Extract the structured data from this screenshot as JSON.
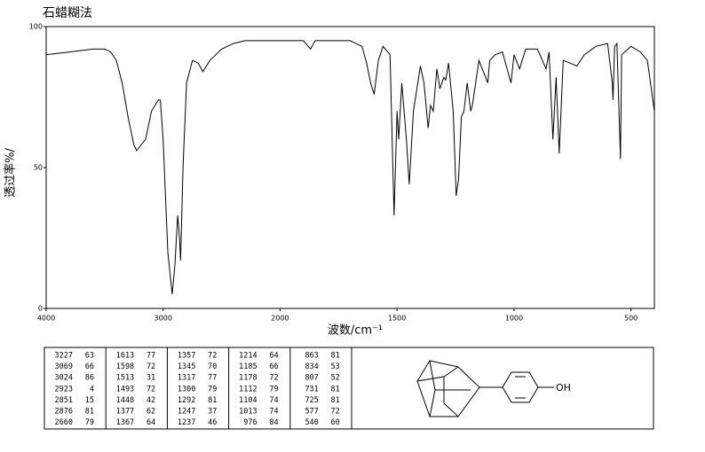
{
  "chart_data": {
    "type": "line",
    "title": "石蜡糊法",
    "x_label": "波数/cm⁻¹",
    "y_label": "透过率%/",
    "xlim": [
      4000,
      400
    ],
    "x_break": 2000,
    "xticks": [
      4000,
      3000,
      2000,
      1500,
      1000,
      500
    ],
    "ylim": [
      0,
      100
    ],
    "yticks": [
      0,
      50,
      100
    ],
    "color": "#000000",
    "x": [
      4000,
      3800,
      3600,
      3500,
      3450,
      3400,
      3350,
      3300,
      3250,
      3227,
      3150,
      3100,
      3069,
      3040,
      3024,
      3000,
      2960,
      2923,
      2900,
      2876,
      2860,
      2851,
      2830,
      2800,
      2750,
      2700,
      2660,
      2600,
      2500,
      2400,
      2300,
      2200,
      2100,
      2000,
      1900,
      1870,
      1850,
      1700,
      1650,
      1630,
      1613,
      1598,
      1580,
      1560,
      1530,
      1513,
      1500,
      1493,
      1480,
      1460,
      1448,
      1430,
      1400,
      1385,
      1367,
      1357,
      1345,
      1330,
      1317,
      1300,
      1292,
      1280,
      1260,
      1247,
      1237,
      1225,
      1214,
      1200,
      1185,
      1178,
      1150,
      1112,
      1104,
      1080,
      1050,
      1013,
      1000,
      976,
      950,
      900,
      863,
      850,
      834,
      820,
      807,
      790,
      760,
      731,
      700,
      650,
      600,
      580,
      577,
      570,
      560,
      545,
      540,
      500,
      460,
      430,
      400
    ],
    "values": [
      90,
      91,
      92,
      92,
      91,
      88,
      80,
      68,
      58,
      56,
      60,
      70,
      72,
      74,
      74,
      60,
      20,
      5,
      15,
      33,
      25,
      17,
      50,
      80,
      88,
      87,
      84,
      88,
      92,
      94,
      95,
      95,
      95,
      95,
      95,
      92,
      95,
      95,
      93,
      87,
      80,
      76,
      88,
      93,
      90,
      33,
      70,
      60,
      80,
      60,
      44,
      70,
      86,
      80,
      64,
      72,
      70,
      85,
      78,
      82,
      81,
      87,
      70,
      40,
      46,
      68,
      70,
      80,
      70,
      72,
      88,
      80,
      88,
      90,
      91,
      80,
      90,
      85,
      92,
      92,
      85,
      91,
      60,
      82,
      55,
      88,
      87,
      86,
      90,
      93,
      94,
      80,
      74,
      93,
      94,
      53,
      90,
      93,
      91,
      88,
      70
    ]
  },
  "peak_table": [
    [
      [
        "3227",
        "63"
      ],
      [
        "3069",
        "66"
      ],
      [
        "3024",
        "86"
      ],
      [
        "2923",
        "4"
      ],
      [
        "2851",
        "15"
      ],
      [
        "2876",
        "81"
      ],
      [
        "2660",
        "79"
      ]
    ],
    [
      [
        "1613",
        "77"
      ],
      [
        "1598",
        "72"
      ],
      [
        "1513",
        "31"
      ],
      [
        "1493",
        "72"
      ],
      [
        "1448",
        "42"
      ],
      [
        "1377",
        "62"
      ],
      [
        "1367",
        "64"
      ]
    ],
    [
      [
        "1357",
        "72"
      ],
      [
        "1345",
        "70"
      ],
      [
        "1317",
        "77"
      ],
      [
        "1300",
        "79"
      ],
      [
        "1292",
        "81"
      ],
      [
        "1247",
        "37"
      ],
      [
        "1237",
        "46"
      ]
    ],
    [
      [
        "1214",
        "64"
      ],
      [
        "1185",
        "66"
      ],
      [
        "1178",
        "72"
      ],
      [
        "1112",
        "79"
      ],
      [
        "1104",
        "74"
      ],
      [
        "1013",
        "74"
      ],
      [
        "976",
        "84"
      ]
    ],
    [
      [
        "863",
        "81"
      ],
      [
        "834",
        "53"
      ],
      [
        "807",
        "52"
      ],
      [
        "731",
        "81"
      ],
      [
        "725",
        "81"
      ],
      [
        "577",
        "72"
      ],
      [
        "540",
        "60"
      ]
    ]
  ],
  "structure": {
    "label": "OH"
  }
}
